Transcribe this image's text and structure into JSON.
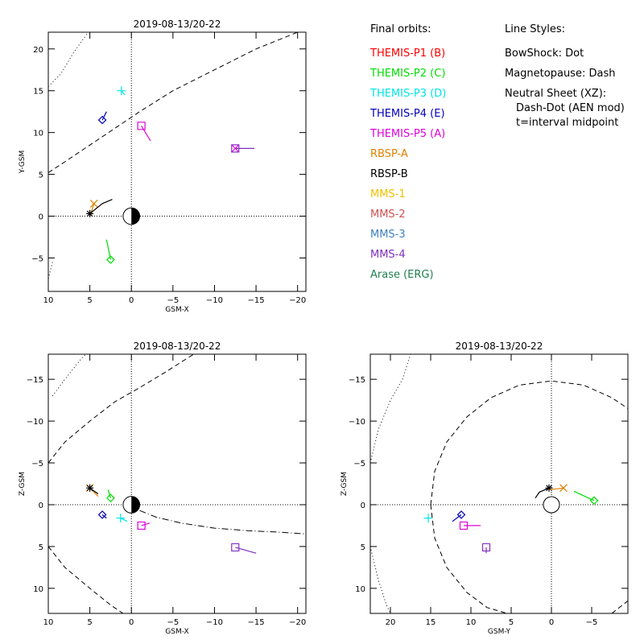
{
  "chart_data": [
    {
      "type": "scatter",
      "panel": "top-left",
      "title": "2019-08-13/20-22",
      "xlabel": "GSM-X",
      "ylabel": "Y-GSM",
      "xlim": [
        10,
        -21
      ],
      "ylim": [
        22,
        -9
      ],
      "x_ticks": [
        10,
        5,
        0,
        -5,
        -10,
        -15,
        -20
      ],
      "y_ticks": [
        -5,
        0,
        5,
        10,
        15,
        20
      ],
      "earth": true,
      "sun_direction": "left",
      "curves": [
        {
          "name": "Magnetopause",
          "style": "dash",
          "points": [
            [
              10,
              5.2
            ],
            [
              8,
              6.5
            ],
            [
              5,
              8.5
            ],
            [
              2,
              10.5
            ],
            [
              -1,
              12.5
            ],
            [
              -5,
              15
            ],
            [
              -10,
              17.5
            ],
            [
              -15,
              20
            ],
            [
              -20,
              22
            ]
          ]
        },
        {
          "name": "BowShock",
          "style": "dot",
          "points": [
            [
              9.5,
              -5.5
            ],
            [
              10,
              -7.5
            ]
          ]
        },
        {
          "name": "BowShock",
          "style": "dot",
          "points": [
            [
              10,
              15.5
            ],
            [
              8.5,
              17
            ],
            [
              7,
              19.5
            ],
            [
              5.2,
              22
            ]
          ]
        }
      ],
      "spacecraft": [
        {
          "name": "THEMIS-P2 (C)",
          "symbol": "diamond",
          "position": [
            2.5,
            -5.2
          ],
          "track": [
            [
              2.5,
              -5.2
            ],
            [
              3,
              -2.8
            ]
          ]
        },
        {
          "name": "RBSP-A",
          "symbol": "x",
          "position": [
            4.5,
            1.5
          ],
          "track": [
            [
              4.5,
              1.5
            ],
            [
              5,
              0
            ]
          ]
        },
        {
          "name": "RBSP-B",
          "symbol": "asterisk",
          "position": [
            5,
            0.3
          ],
          "track": [
            [
              5,
              0.3
            ],
            [
              3.5,
              1.5
            ],
            [
              2.3,
              2
            ]
          ]
        },
        {
          "name": "THEMIS-P4 (E)",
          "symbol": "diamond",
          "position": [
            3.5,
            11.5
          ],
          "track": [
            [
              3.5,
              11.5
            ],
            [
              3,
              12.5
            ]
          ]
        },
        {
          "name": "THEMIS-P3 (D)",
          "symbol": "plus",
          "position": [
            1.2,
            15
          ],
          "track": [
            [
              1.2,
              15
            ],
            [
              0.8,
              14.5
            ]
          ]
        },
        {
          "name": "THEMIS-P5 (A)",
          "symbol": "square",
          "position": [
            -1.2,
            10.8
          ],
          "track": [
            [
              -1.2,
              10.8
            ],
            [
              -2.3,
              9
            ]
          ]
        },
        {
          "name": "MMS-4",
          "symbol": "square",
          "position": [
            -12.5,
            8.1
          ],
          "track": [
            [
              -12.5,
              8.1
            ],
            [
              -14.8,
              8.1
            ]
          ]
        },
        {
          "name": "THEMIS-P5 (A)",
          "symbol": "x",
          "position": [
            -12.5,
            8.1
          ],
          "track": []
        }
      ]
    },
    {
      "type": "scatter",
      "panel": "bottom-left",
      "title": "2019-08-13/20-22",
      "xlabel": "GSM-X",
      "ylabel": "Z-GSM",
      "xlim": [
        10,
        -21
      ],
      "ylim": [
        -18,
        13
      ],
      "x_ticks": [
        10,
        5,
        0,
        -5,
        -10,
        -15,
        -20
      ],
      "y_ticks": [
        10,
        5,
        0,
        -5,
        -10,
        -15
      ],
      "earth": true,
      "sun_direction": "left",
      "curves": [
        {
          "name": "Magnetopause",
          "style": "dash",
          "points": [
            [
              10,
              5
            ],
            [
              8,
              7.5
            ],
            [
              5,
              10
            ],
            [
              2.5,
              12
            ],
            [
              1,
              13
            ]
          ]
        },
        {
          "name": "Magnetopause",
          "style": "dash",
          "points": [
            [
              10,
              -5
            ],
            [
              8,
              -7.5
            ],
            [
              5,
              -10
            ],
            [
              2,
              -12.3
            ],
            [
              -1,
              -14
            ],
            [
              -4,
              -15.8
            ],
            [
              -7.5,
              -18
            ]
          ]
        },
        {
          "name": "BowShock",
          "style": "dot",
          "points": [
            [
              9.5,
              -13
            ],
            [
              8,
              -15
            ],
            [
              6,
              -17.5
            ],
            [
              5.5,
              -18
            ]
          ]
        },
        {
          "name": "Neutral Sheet",
          "style": "dashdot",
          "points": [
            [
              -1,
              0.7
            ],
            [
              -3,
              1.5
            ],
            [
              -6,
              2.2
            ],
            [
              -10,
              2.8
            ],
            [
              -14,
              3.1
            ],
            [
              -18,
              3.3
            ],
            [
              -21,
              3.5
            ]
          ]
        }
      ],
      "spacecraft": [
        {
          "name": "MMS-4",
          "symbol": "square",
          "position": [
            -12.5,
            5.1
          ],
          "track": [
            [
              -12.5,
              5.1
            ],
            [
              -15,
              5.8
            ]
          ]
        },
        {
          "name": "THEMIS-P5 (A)",
          "symbol": "square",
          "position": [
            -1.2,
            2.5
          ],
          "track": [
            [
              -1.2,
              2.5
            ],
            [
              -2.2,
              2.2
            ]
          ]
        },
        {
          "name": "THEMIS-P3 (D)",
          "symbol": "plus",
          "position": [
            1.3,
            1.6
          ],
          "track": [
            [
              1.3,
              1.6
            ],
            [
              0.5,
              2
            ]
          ]
        },
        {
          "name": "THEMIS-P4 (E)",
          "symbol": "diamond",
          "position": [
            3.5,
            1.2
          ],
          "track": [
            [
              3.5,
              1.2
            ],
            [
              3,
              1.6
            ]
          ]
        },
        {
          "name": "THEMIS-P2 (C)",
          "symbol": "diamond",
          "position": [
            2.5,
            -0.8
          ],
          "track": [
            [
              2.5,
              -0.8
            ],
            [
              2.8,
              -1.8
            ]
          ]
        },
        {
          "name": "RBSP-A",
          "symbol": "x",
          "position": [
            5,
            -2
          ],
          "track": [
            [
              5,
              -2
            ],
            [
              4,
              -1
            ]
          ]
        },
        {
          "name": "RBSP-B",
          "symbol": "asterisk",
          "position": [
            5,
            -2
          ],
          "track": [
            [
              5,
              -2
            ],
            [
              4,
              -1.3
            ]
          ]
        }
      ]
    },
    {
      "type": "scatter",
      "panel": "bottom-right",
      "title": "2019-08-13/20-22",
      "xlabel": "GSM-Y",
      "ylabel": "Z-GSM",
      "xlim": [
        22.5,
        -9.5
      ],
      "ylim": [
        -18,
        13
      ],
      "x_ticks": [
        20,
        15,
        10,
        5,
        0,
        -5
      ],
      "y_ticks": [
        10,
        5,
        0,
        -5,
        -10,
        -15
      ],
      "earth": true,
      "sun_direction": "none",
      "curves": [
        {
          "name": "Magnetopause",
          "style": "dash",
          "points": [
            [
              15,
              0
            ],
            [
              14.5,
              -4
            ],
            [
              13,
              -7.5
            ],
            [
              10.5,
              -10.5
            ],
            [
              7.5,
              -12.8
            ],
            [
              4,
              -14.3
            ],
            [
              0,
              -14.8
            ],
            [
              -4,
              -14.3
            ],
            [
              -7.5,
              -12.8
            ],
            [
              -9.5,
              -11.5
            ]
          ]
        },
        {
          "name": "Magnetopause",
          "style": "dash",
          "points": [
            [
              15,
              0
            ],
            [
              14.5,
              4
            ],
            [
              13,
              7.5
            ],
            [
              10.5,
              10.5
            ],
            [
              8,
              12.3
            ],
            [
              5.5,
              13
            ]
          ]
        },
        {
          "name": "Magnetopause",
          "style": "dash",
          "points": [
            [
              -7.5,
              13
            ],
            [
              -9.5,
              11.5
            ]
          ]
        },
        {
          "name": "BowShock",
          "style": "dot",
          "points": [
            [
              22.5,
              -5
            ],
            [
              21.5,
              -9
            ],
            [
              20,
              -12.5
            ],
            [
              18.5,
              -15
            ],
            [
              17.5,
              -18
            ]
          ]
        },
        {
          "name": "BowShock",
          "style": "dot",
          "points": [
            [
              22.5,
              5
            ],
            [
              21.5,
              9
            ],
            [
              20.5,
              12
            ],
            [
              20,
              13
            ]
          ]
        }
      ],
      "spacecraft": [
        {
          "name": "THEMIS-P3 (D)",
          "symbol": "plus",
          "position": [
            15.3,
            1.6
          ],
          "track": [
            [
              15.3,
              1.6
            ],
            [
              15.5,
              1.6
            ]
          ]
        },
        {
          "name": "THEMIS-P4 (E)",
          "symbol": "diamond",
          "position": [
            11.2,
            1.2
          ],
          "track": [
            [
              11.2,
              1.2
            ],
            [
              12.3,
              2
            ]
          ]
        },
        {
          "name": "THEMIS-P5 (A)",
          "symbol": "square",
          "position": [
            10.9,
            2.5
          ],
          "track": [
            [
              10.9,
              2.5
            ],
            [
              8.8,
              2.5
            ]
          ]
        },
        {
          "name": "MMS-4",
          "symbol": "square",
          "position": [
            8.1,
            5.1
          ],
          "track": [
            [
              8.1,
              5.1
            ],
            [
              8.1,
              5.8
            ]
          ]
        },
        {
          "name": "RBSP-B",
          "symbol": "asterisk",
          "position": [
            0.3,
            -2
          ],
          "track": [
            [
              0.3,
              -2
            ],
            [
              1.5,
              -1.5
            ],
            [
              2,
              -0.8
            ]
          ]
        },
        {
          "name": "RBSP-A",
          "symbol": "x",
          "position": [
            -1.5,
            -2
          ],
          "track": [
            [
              -1.5,
              -2
            ],
            [
              0.2,
              -1.8
            ]
          ]
        },
        {
          "name": "THEMIS-P2 (C)",
          "symbol": "diamond",
          "position": [
            -5.3,
            -0.5
          ],
          "track": [
            [
              -5.3,
              -0.5
            ],
            [
              -2.8,
              -1.6
            ]
          ]
        }
      ]
    }
  ],
  "legend": {
    "orbits_title": "Final orbits:",
    "items": [
      {
        "label": "THEMIS-P1 (B)",
        "color": "#ff0000"
      },
      {
        "label": "THEMIS-P2 (C)",
        "color": "#00dd00"
      },
      {
        "label": "THEMIS-P3 (D)",
        "color": "#00e5e5"
      },
      {
        "label": "THEMIS-P4 (E)",
        "color": "#0000bb"
      },
      {
        "label": "THEMIS-P5 (A)",
        "color": "#dd00dd"
      },
      {
        "label": "RBSP-A",
        "color": "#e08000"
      },
      {
        "label": "RBSP-B",
        "color": "#000000"
      },
      {
        "label": "MMS-1",
        "color": "#f0c000"
      },
      {
        "label": "MMS-2",
        "color": "#d05050"
      },
      {
        "label": "MMS-3",
        "color": "#4080c0"
      },
      {
        "label": "MMS-4",
        "color": "#8030c0"
      },
      {
        "label": "Arase (ERG)",
        "color": "#208050"
      }
    ],
    "styles_title": "Line Styles:",
    "styles": [
      "BowShock: Dot",
      "Magnetopause: Dash",
      "Neutral Sheet (XZ):",
      "Dash-Dot (AEN mod)",
      "t=interval midpoint"
    ]
  }
}
